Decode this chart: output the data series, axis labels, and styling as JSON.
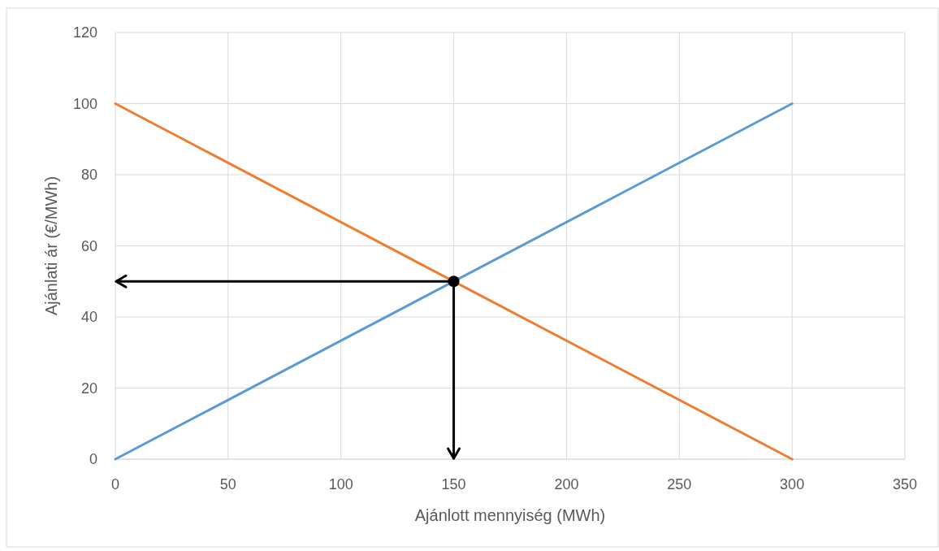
{
  "chart_data": {
    "type": "line",
    "xlabel": "Ajánlott mennyiség (MWh)",
    "ylabel": "Ajánlati ár (€/MWh)",
    "series": [
      {
        "color": "#ed7d31",
        "x": [
          0,
          300
        ],
        "values": [
          100,
          0
        ]
      },
      {
        "color": "#5b9bd5",
        "x": [
          0,
          300
        ],
        "values": [
          0,
          100
        ]
      },
      {
        "type": "scatter",
        "color": "#000000",
        "x": [
          150
        ],
        "values": [
          50
        ],
        "marker": "circle"
      }
    ],
    "xlim": [
      0,
      350
    ],
    "xticks": [
      0,
      50,
      100,
      150,
      200,
      250,
      300,
      350
    ],
    "ylim": [
      0,
      120
    ],
    "yticks": [
      0,
      20,
      40,
      60,
      80,
      100,
      120
    ],
    "ref_lines": [
      {
        "axis": "y",
        "value": 50,
        "color": "#000000"
      },
      {
        "axis": "x",
        "value": 150,
        "color": "#000000"
      }
    ],
    "grid": true,
    "line_style": "solid"
  }
}
